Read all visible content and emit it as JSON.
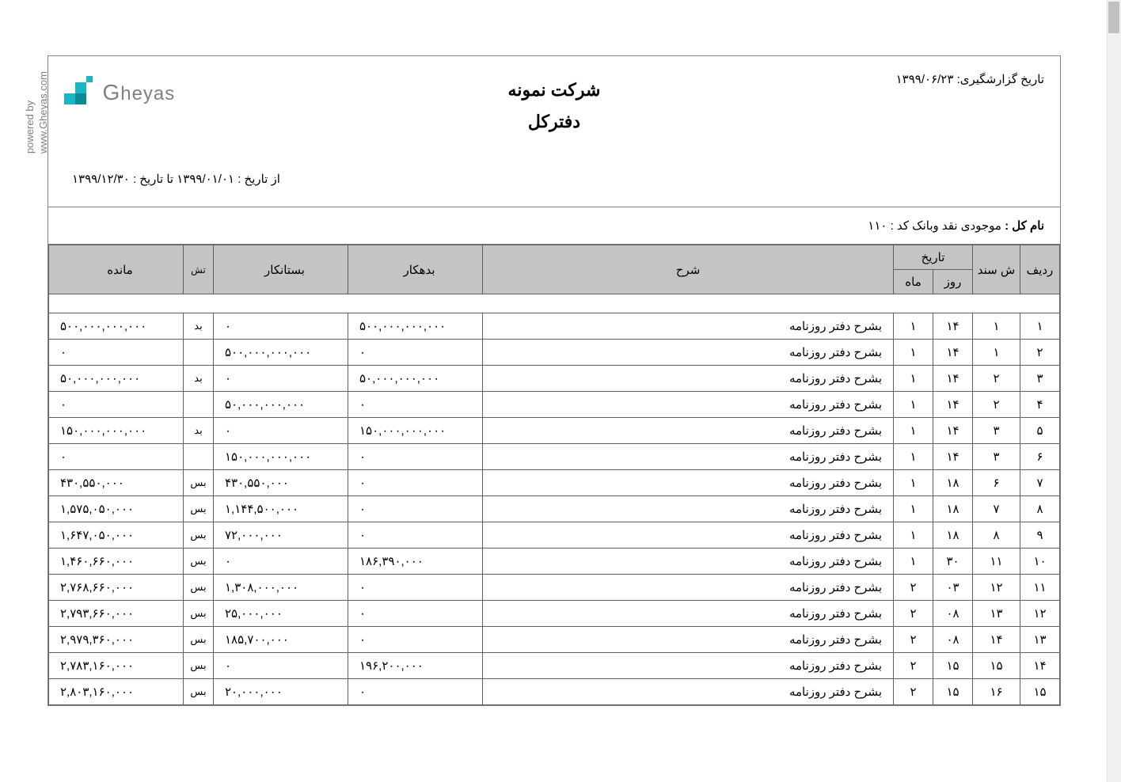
{
  "sidebar": {
    "powered": "powered by",
    "site": "www.Gheyas.com"
  },
  "logo": {
    "brand": "heyas",
    "first_letter": "G",
    "accent_color": "#1bb5c4"
  },
  "header": {
    "report_date_label": "تاریخ گزارشگیری:",
    "report_date_value": "۱۳۹۹/۰۶/۲۳",
    "company_name": "شرکت نمونه",
    "report_title": "دفترکل",
    "date_range": "از تاریخ : ۱۳۹۹/۰۱/۰۱  تا تاریخ : ۱۳۹۹/۱۲/۳۰"
  },
  "account": {
    "label": "نام کل : ",
    "name": "موجودی نقد وبانک",
    "code_label": " کد : ",
    "code": "۱۱۰"
  },
  "columns": {
    "radif": "ردیف",
    "sanad": "ش سند",
    "tarikh": "تاریخ",
    "rooz": "روز",
    "mah": "ماه",
    "sharh": "شرح",
    "bedehkar": "بدهکار",
    "bestankar": "بستانکار",
    "tash": "تش",
    "mandeh": "مانده"
  },
  "rows": [
    {
      "radif": "۱",
      "sanad": "۱",
      "rooz": "۱۴",
      "mah": "۱",
      "sharh": "بشرح دفتر روزنامه",
      "bedehkar": "۵۰۰,۰۰۰,۰۰۰,۰۰۰",
      "bestankar": "۰",
      "tash": "بد",
      "mandeh": "۵۰۰,۰۰۰,۰۰۰,۰۰۰"
    },
    {
      "radif": "۲",
      "sanad": "۱",
      "rooz": "۱۴",
      "mah": "۱",
      "sharh": "بشرح دفتر روزنامه",
      "bedehkar": "۰",
      "bestankar": "۵۰۰,۰۰۰,۰۰۰,۰۰۰",
      "tash": "",
      "mandeh": "۰"
    },
    {
      "radif": "۳",
      "sanad": "۲",
      "rooz": "۱۴",
      "mah": "۱",
      "sharh": "بشرح دفتر روزنامه",
      "bedehkar": "۵۰,۰۰۰,۰۰۰,۰۰۰",
      "bestankar": "۰",
      "tash": "بد",
      "mandeh": "۵۰,۰۰۰,۰۰۰,۰۰۰"
    },
    {
      "radif": "۴",
      "sanad": "۲",
      "rooz": "۱۴",
      "mah": "۱",
      "sharh": "بشرح دفتر روزنامه",
      "bedehkar": "۰",
      "bestankar": "۵۰,۰۰۰,۰۰۰,۰۰۰",
      "tash": "",
      "mandeh": "۰"
    },
    {
      "radif": "۵",
      "sanad": "۳",
      "rooz": "۱۴",
      "mah": "۱",
      "sharh": "بشرح دفتر روزنامه",
      "bedehkar": "۱۵۰,۰۰۰,۰۰۰,۰۰۰",
      "bestankar": "۰",
      "tash": "بد",
      "mandeh": "۱۵۰,۰۰۰,۰۰۰,۰۰۰"
    },
    {
      "radif": "۶",
      "sanad": "۳",
      "rooz": "۱۴",
      "mah": "۱",
      "sharh": "بشرح دفتر روزنامه",
      "bedehkar": "۰",
      "bestankar": "۱۵۰,۰۰۰,۰۰۰,۰۰۰",
      "tash": "",
      "mandeh": "۰"
    },
    {
      "radif": "۷",
      "sanad": "۶",
      "rooz": "۱۸",
      "mah": "۱",
      "sharh": "بشرح دفتر روزنامه",
      "bedehkar": "۰",
      "bestankar": "۴۳۰,۵۵۰,۰۰۰",
      "tash": "بس",
      "mandeh": "۴۳۰,۵۵۰,۰۰۰"
    },
    {
      "radif": "۸",
      "sanad": "۷",
      "rooz": "۱۸",
      "mah": "۱",
      "sharh": "بشرح دفتر روزنامه",
      "bedehkar": "۰",
      "bestankar": "۱,۱۴۴,۵۰۰,۰۰۰",
      "tash": "بس",
      "mandeh": "۱,۵۷۵,۰۵۰,۰۰۰"
    },
    {
      "radif": "۹",
      "sanad": "۸",
      "rooz": "۱۸",
      "mah": "۱",
      "sharh": "بشرح دفتر روزنامه",
      "bedehkar": "۰",
      "bestankar": "۷۲,۰۰۰,۰۰۰",
      "tash": "بس",
      "mandeh": "۱,۶۴۷,۰۵۰,۰۰۰"
    },
    {
      "radif": "۱۰",
      "sanad": "۱۱",
      "rooz": "۳۰",
      "mah": "۱",
      "sharh": "بشرح دفتر روزنامه",
      "bedehkar": "۱۸۶,۳۹۰,۰۰۰",
      "bestankar": "۰",
      "tash": "بس",
      "mandeh": "۱,۴۶۰,۶۶۰,۰۰۰"
    },
    {
      "radif": "۱۱",
      "sanad": "۱۲",
      "rooz": "۰۳",
      "mah": "۲",
      "sharh": "بشرح دفتر روزنامه",
      "bedehkar": "۰",
      "bestankar": "۱,۳۰۸,۰۰۰,۰۰۰",
      "tash": "بس",
      "mandeh": "۲,۷۶۸,۶۶۰,۰۰۰"
    },
    {
      "radif": "۱۲",
      "sanad": "۱۳",
      "rooz": "۰۸",
      "mah": "۲",
      "sharh": "بشرح دفتر روزنامه",
      "bedehkar": "۰",
      "bestankar": "۲۵,۰۰۰,۰۰۰",
      "tash": "بس",
      "mandeh": "۲,۷۹۳,۶۶۰,۰۰۰"
    },
    {
      "radif": "۱۳",
      "sanad": "۱۴",
      "rooz": "۰۸",
      "mah": "۲",
      "sharh": "بشرح دفتر روزنامه",
      "bedehkar": "۰",
      "bestankar": "۱۸۵,۷۰۰,۰۰۰",
      "tash": "بس",
      "mandeh": "۲,۹۷۹,۳۶۰,۰۰۰"
    },
    {
      "radif": "۱۴",
      "sanad": "۱۵",
      "rooz": "۱۵",
      "mah": "۲",
      "sharh": "بشرح دفتر روزنامه",
      "bedehkar": "۱۹۶,۲۰۰,۰۰۰",
      "bestankar": "۰",
      "tash": "بس",
      "mandeh": "۲,۷۸۳,۱۶۰,۰۰۰"
    },
    {
      "radif": "۱۵",
      "sanad": "۱۶",
      "rooz": "۱۵",
      "mah": "۲",
      "sharh": "بشرح دفتر روزنامه",
      "bedehkar": "۰",
      "bestankar": "۲۰,۰۰۰,۰۰۰",
      "tash": "بس",
      "mandeh": "۲,۸۰۳,۱۶۰,۰۰۰"
    }
  ],
  "styles": {
    "header_bg": "#c4c4c4",
    "border_color": "#606060",
    "text_color": "#000000",
    "sidebar_color": "#808080"
  }
}
